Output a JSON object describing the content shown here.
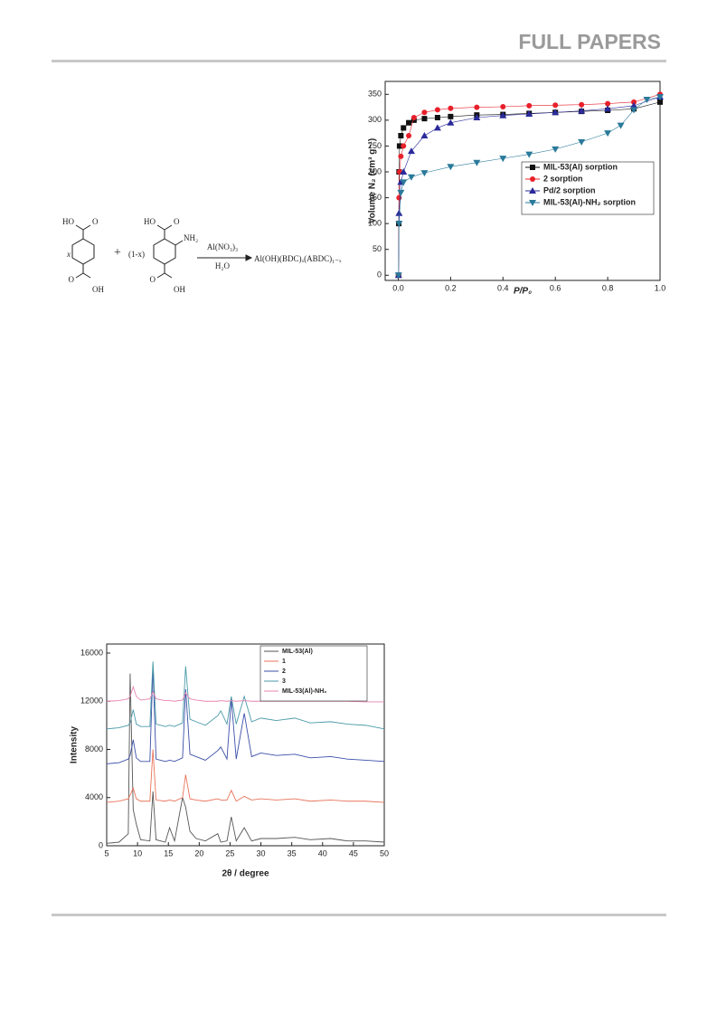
{
  "header": {
    "title": "FULL PAPERS"
  },
  "scheme": {
    "coef_a": "x",
    "plus": "+",
    "coef_b": "(1-x)",
    "reagent": "Al(NO₃)₃",
    "solvent": "H₂O",
    "product": "Al(OH)(BDC)ₓ(ABDC)₁₋ₓ",
    "groups": [
      "HO",
      "O",
      "O",
      "OH",
      "HO",
      "O",
      "NH₂",
      "O",
      "OH"
    ]
  },
  "chart_data": [
    {
      "type": "line",
      "marker_line": true,
      "xlabel": "P/P₀",
      "ylabel": "Volume N₂ (cm³ g⁻¹)",
      "xlim": [
        -0.05,
        1.0
      ],
      "ylim": [
        -10,
        375
      ],
      "xticks": [
        {
          "value": 0,
          "label": "0.0"
        },
        0.2,
        0.4,
        0.6,
        0.8,
        {
          "value": 1,
          "label": "1.0"
        }
      ],
      "yticks": [
        0,
        50,
        100,
        150,
        200,
        250,
        300,
        350
      ],
      "legend": "right",
      "series": [
        {
          "name": "MIL-53(Al) sorption",
          "color": "#111111",
          "marker": "square",
          "x": [
            0.001,
            0.002,
            0.003,
            0.005,
            0.01,
            0.02,
            0.04,
            0.06,
            0.1,
            0.15,
            0.2,
            0.3,
            0.4,
            0.5,
            0.6,
            0.7,
            0.8,
            0.9,
            1.0
          ],
          "values": [
            0,
            100,
            200,
            250,
            270,
            285,
            295,
            300,
            303,
            305,
            307,
            310,
            311,
            313,
            315,
            317,
            319,
            322,
            335
          ]
        },
        {
          "name": "2 sorption",
          "color": "#e8202a",
          "marker": "circle",
          "x": [
            0.001,
            0.003,
            0.005,
            0.01,
            0.02,
            0.04,
            0.06,
            0.1,
            0.15,
            0.2,
            0.3,
            0.4,
            0.5,
            0.6,
            0.7,
            0.8,
            0.9,
            1.0
          ],
          "values": [
            0,
            150,
            200,
            230,
            250,
            270,
            305,
            315,
            320,
            323,
            325,
            326,
            328,
            329,
            330,
            332,
            335,
            350
          ]
        },
        {
          "name": "Pd/2 sorption",
          "color": "#2a2a9a",
          "marker": "triangle-up",
          "x": [
            0.001,
            0.003,
            0.01,
            0.02,
            0.05,
            0.1,
            0.15,
            0.2,
            0.3,
            0.4,
            0.5,
            0.6,
            0.7,
            0.8,
            0.9,
            1.0
          ],
          "values": [
            0,
            120,
            180,
            200,
            240,
            270,
            285,
            295,
            305,
            309,
            312,
            315,
            318,
            322,
            328,
            345
          ]
        },
        {
          "name": "MIL-53(Al)-NH₂ sorption",
          "color": "#2a7a9a",
          "marker": "triangle-down",
          "x": [
            0.001,
            0.003,
            0.01,
            0.02,
            0.05,
            0.1,
            0.2,
            0.3,
            0.4,
            0.5,
            0.6,
            0.7,
            0.8,
            0.85,
            0.9,
            0.95,
            1.0
          ],
          "values": [
            0,
            100,
            160,
            180,
            190,
            198,
            210,
            218,
            226,
            234,
            244,
            258,
            275,
            290,
            320,
            340,
            345
          ]
        }
      ]
    },
    {
      "type": "line",
      "xlabel": "2θ / degree",
      "ylabel": "Intensity",
      "xlim": [
        5,
        50
      ],
      "ylim": [
        0,
        16750
      ],
      "xticks": [
        5,
        10,
        15,
        20,
        25,
        30,
        35,
        40,
        45,
        50
      ],
      "yticks": [
        0,
        4000,
        8000,
        12000,
        16000
      ],
      "legend": "top",
      "x": [
        5,
        7,
        8.5,
        8.8,
        9.3,
        9.8,
        10.5,
        12,
        12.5,
        13,
        14.5,
        15.2,
        16,
        17.3,
        17.8,
        18.5,
        19.5,
        21,
        23,
        23.5,
        24.5,
        25.2,
        26,
        27.3,
        28.5,
        30,
        32.5,
        35.5,
        38,
        41.3,
        44,
        47,
        50
      ],
      "series": [
        {
          "name": "MIL-53(Al)",
          "color": "#555555",
          "values": [
            200,
            300,
            1000,
            14300,
            3000,
            1800,
            500,
            400,
            4500,
            500,
            300,
            1500,
            400,
            4000,
            3200,
            1200,
            600,
            400,
            1000,
            300,
            400,
            2400,
            400,
            1500,
            400,
            600,
            600,
            700,
            500,
            600,
            400,
            400,
            300
          ]
        },
        {
          "name": "1",
          "color": "#e8735a",
          "values": [
            3600,
            3700,
            3900,
            4200,
            4800,
            3900,
            3700,
            3700,
            8000,
            3800,
            3700,
            3800,
            3700,
            4000,
            5900,
            3900,
            3800,
            3700,
            3900,
            3800,
            3800,
            4600,
            3700,
            4100,
            3800,
            3900,
            3800,
            3900,
            3700,
            3800,
            3700,
            3700,
            3600
          ]
        },
        {
          "name": "2",
          "color": "#3b4fa8",
          "values": [
            6800,
            6900,
            7200,
            7500,
            8800,
            7300,
            7000,
            7000,
            14800,
            7200,
            7000,
            7100,
            7000,
            7300,
            13000,
            7600,
            7400,
            7100,
            7900,
            8200,
            7200,
            12200,
            7200,
            11000,
            7400,
            7700,
            7500,
            7600,
            7300,
            7400,
            7200,
            7100,
            7000
          ]
        },
        {
          "name": "3",
          "color": "#4a9aa8",
          "values": [
            9700,
            9800,
            10000,
            10200,
            11300,
            10100,
            9900,
            9900,
            15300,
            10100,
            9900,
            10000,
            9900,
            10200,
            14900,
            10500,
            10300,
            10000,
            10800,
            11200,
            10100,
            12400,
            10100,
            12400,
            10300,
            10600,
            10400,
            10600,
            10200,
            10300,
            10100,
            10000,
            9700
          ]
        },
        {
          "name": "MIL-53(Al)-NH₂",
          "color": "#e883b0",
          "values": [
            12000,
            12050,
            12200,
            12400,
            13200,
            12400,
            12100,
            12200,
            12800,
            12200,
            12050,
            12050,
            12000,
            12100,
            12700,
            12200,
            12100,
            12000,
            12000,
            12050,
            12000,
            12050,
            12000,
            12050,
            12000,
            12000,
            12000,
            12000,
            12000,
            12000,
            12000,
            11950,
            11950
          ]
        }
      ]
    }
  ]
}
